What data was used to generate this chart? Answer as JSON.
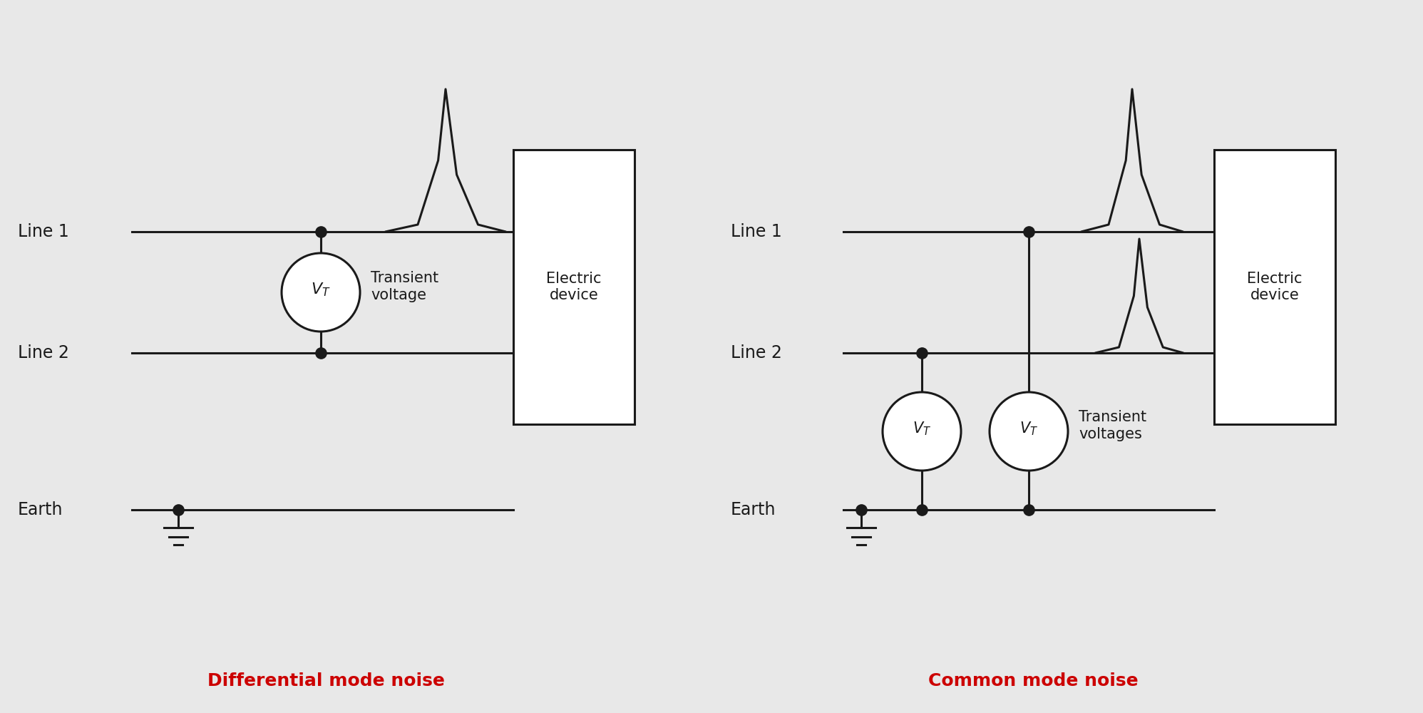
{
  "bg_color": "#e8e8e8",
  "line_color": "#1a1a1a",
  "text_color": "#1a1a1a",
  "red_color": "#cc0000",
  "line_width": 2.2,
  "left_diagram": {
    "title": "Differential mode noise",
    "line1_label": "Line 1",
    "line2_label": "Line 2",
    "earth_label": "Earth",
    "transient_label": "Transient\nvoltage",
    "device_label": "Electric\ndevice"
  },
  "right_diagram": {
    "title": "Common mode noise",
    "line1_label": "Line 1",
    "line2_label": "Line 2",
    "earth_label": "Earth",
    "transient_label": "Transient\nvoltages",
    "device_label": "Electric\ndevice"
  }
}
